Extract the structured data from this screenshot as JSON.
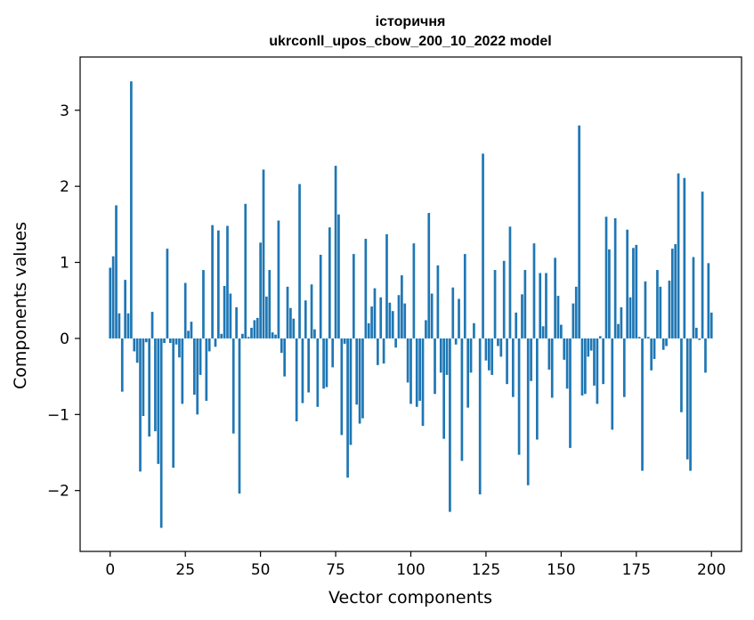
{
  "chart_data": {
    "type": "bar",
    "title": "історичня",
    "subtitle": "ukrconll_upos_cbow_200_10_2022 model",
    "xlabel": "Vector components",
    "ylabel": "Components values",
    "xlim": [
      -10,
      210
    ],
    "ylim": [
      -2.8,
      3.7
    ],
    "xticks": [
      0,
      25,
      50,
      75,
      100,
      125,
      150,
      175,
      200
    ],
    "yticks": [
      -2,
      -1,
      0,
      1,
      2,
      3
    ],
    "grid": false,
    "bar_color": "#1f77b4",
    "x_start": 0,
    "values": [
      0.93,
      1.08,
      1.75,
      0.33,
      -0.7,
      0.77,
      0.33,
      3.38,
      -0.17,
      -0.32,
      -1.75,
      -1.02,
      -0.05,
      -1.29,
      0.35,
      -1.22,
      -1.65,
      -2.49,
      -0.06,
      1.18,
      -0.06,
      -1.7,
      -0.08,
      -0.25,
      -0.86,
      0.73,
      0.1,
      0.22,
      -0.74,
      -1.0,
      -0.48,
      0.9,
      -0.82,
      -0.17,
      1.49,
      -0.11,
      1.42,
      0.06,
      0.69,
      1.48,
      0.59,
      -1.25,
      0.41,
      -2.04,
      0.06,
      1.77,
      0.02,
      0.14,
      0.24,
      0.27,
      1.26,
      2.22,
      0.55,
      0.9,
      0.08,
      0.05,
      1.55,
      -0.19,
      -0.5,
      0.68,
      0.4,
      0.26,
      -1.09,
      2.03,
      -0.85,
      0.5,
      -0.71,
      0.71,
      0.12,
      -0.9,
      1.1,
      -0.66,
      -0.64,
      1.46,
      -0.38,
      2.27,
      1.63,
      -1.27,
      -0.07,
      -1.83,
      -1.4,
      1.11,
      -0.87,
      -1.12,
      -1.05,
      1.31,
      0.2,
      0.42,
      0.66,
      -0.35,
      0.54,
      -0.33,
      1.37,
      0.47,
      0.36,
      -0.12,
      0.57,
      0.83,
      0.46,
      -0.58,
      -0.86,
      1.25,
      -0.9,
      -0.82,
      -1.15,
      0.24,
      1.65,
      0.59,
      -0.73,
      0.96,
      -0.45,
      -1.32,
      -0.48,
      -2.28,
      0.67,
      -0.08,
      0.52,
      -1.61,
      1.11,
      -0.91,
      -0.45,
      0.2,
      0.0,
      -2.05,
      2.43,
      -0.29,
      -0.42,
      -0.48,
      0.9,
      -0.1,
      -0.24,
      1.02,
      -0.6,
      1.47,
      -0.77,
      0.34,
      -1.53,
      0.58,
      0.9,
      -1.93,
      -0.56,
      1.25,
      -1.33,
      0.86,
      0.16,
      0.86,
      -0.41,
      -0.78,
      1.06,
      0.56,
      0.18,
      -0.28,
      -0.66,
      -1.44,
      0.46,
      0.68,
      2.8,
      -0.75,
      -0.73,
      -0.24,
      -0.16,
      -0.62,
      -0.86,
      0.03,
      -0.6,
      1.6,
      1.17,
      -1.2,
      1.58,
      0.19,
      0.41,
      -0.77,
      1.43,
      0.54,
      1.19,
      1.23,
      0.02,
      -1.74,
      0.75,
      0.02,
      -0.42,
      -0.27,
      0.9,
      0.68,
      -0.15,
      -0.1,
      0.76,
      1.18,
      1.24,
      2.17,
      -0.97,
      2.11,
      -1.59,
      -1.74,
      1.07,
      0.14,
      -0.02,
      1.93,
      -0.45,
      0.99,
      0.34
    ]
  }
}
